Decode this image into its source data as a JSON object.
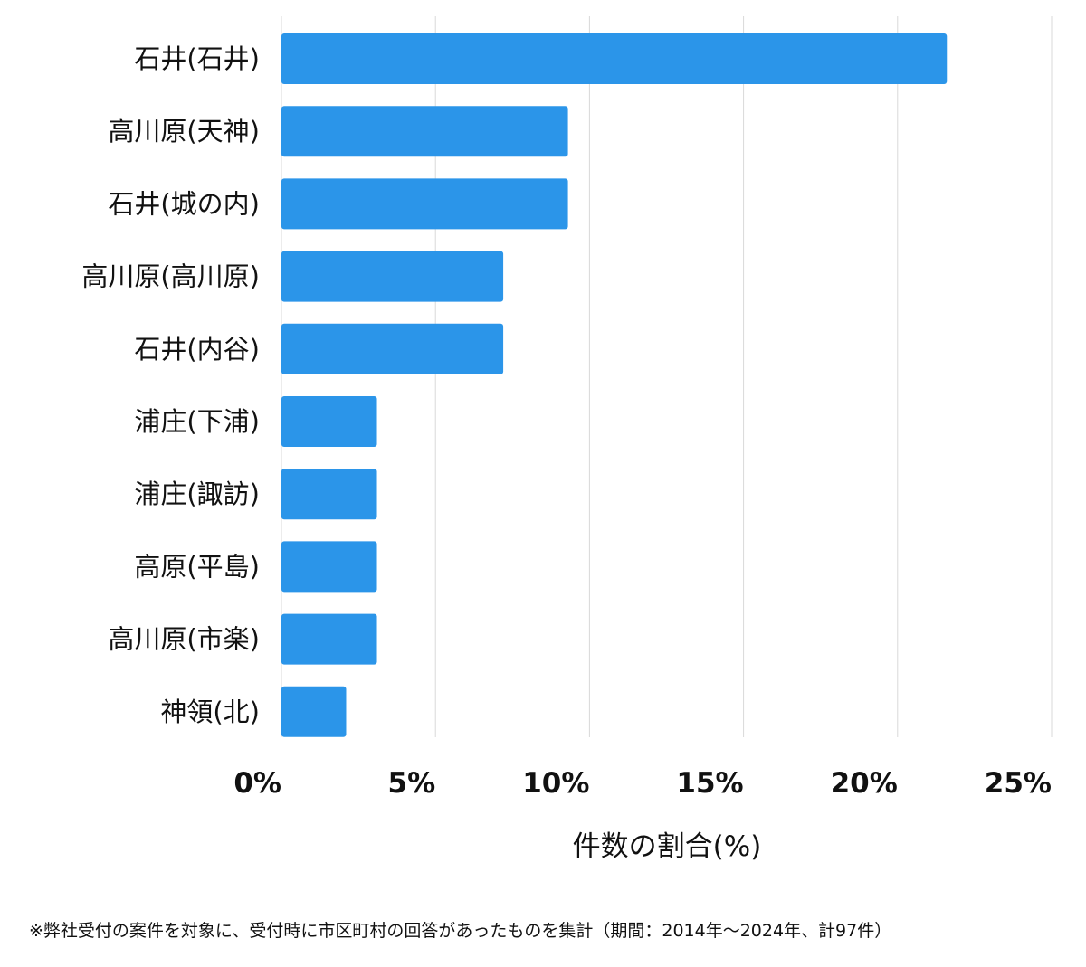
{
  "chart_data": {
    "type": "bar",
    "orientation": "horizontal",
    "categories": [
      "石井(石井)",
      "高川原(天神)",
      "石井(城の内)",
      "高川原(高川原)",
      "石井(内谷)",
      "浦庄(下浦)",
      "浦庄(諏訪)",
      "高原(平島)",
      "高川原(市楽)",
      "神領(北)"
    ],
    "values": [
      21.6,
      9.3,
      9.3,
      7.2,
      7.2,
      3.1,
      3.1,
      3.1,
      3.1,
      2.1
    ],
    "xlim": [
      0,
      25
    ],
    "ticks": [
      0,
      5,
      10,
      15,
      20,
      25
    ],
    "tick_labels": [
      "0%",
      "5%",
      "10%",
      "15%",
      "20%",
      "25%"
    ],
    "xlabel": "件数の割合(%)",
    "ylabel": "",
    "grid": true,
    "bar_color": "#2b95e9",
    "grid_color": "#d9d9d9"
  },
  "footnote": "※弊社受付の案件を対象に、受付時に市区町村の回答があったものを集計（期間：2014年〜2024年、計97件）"
}
